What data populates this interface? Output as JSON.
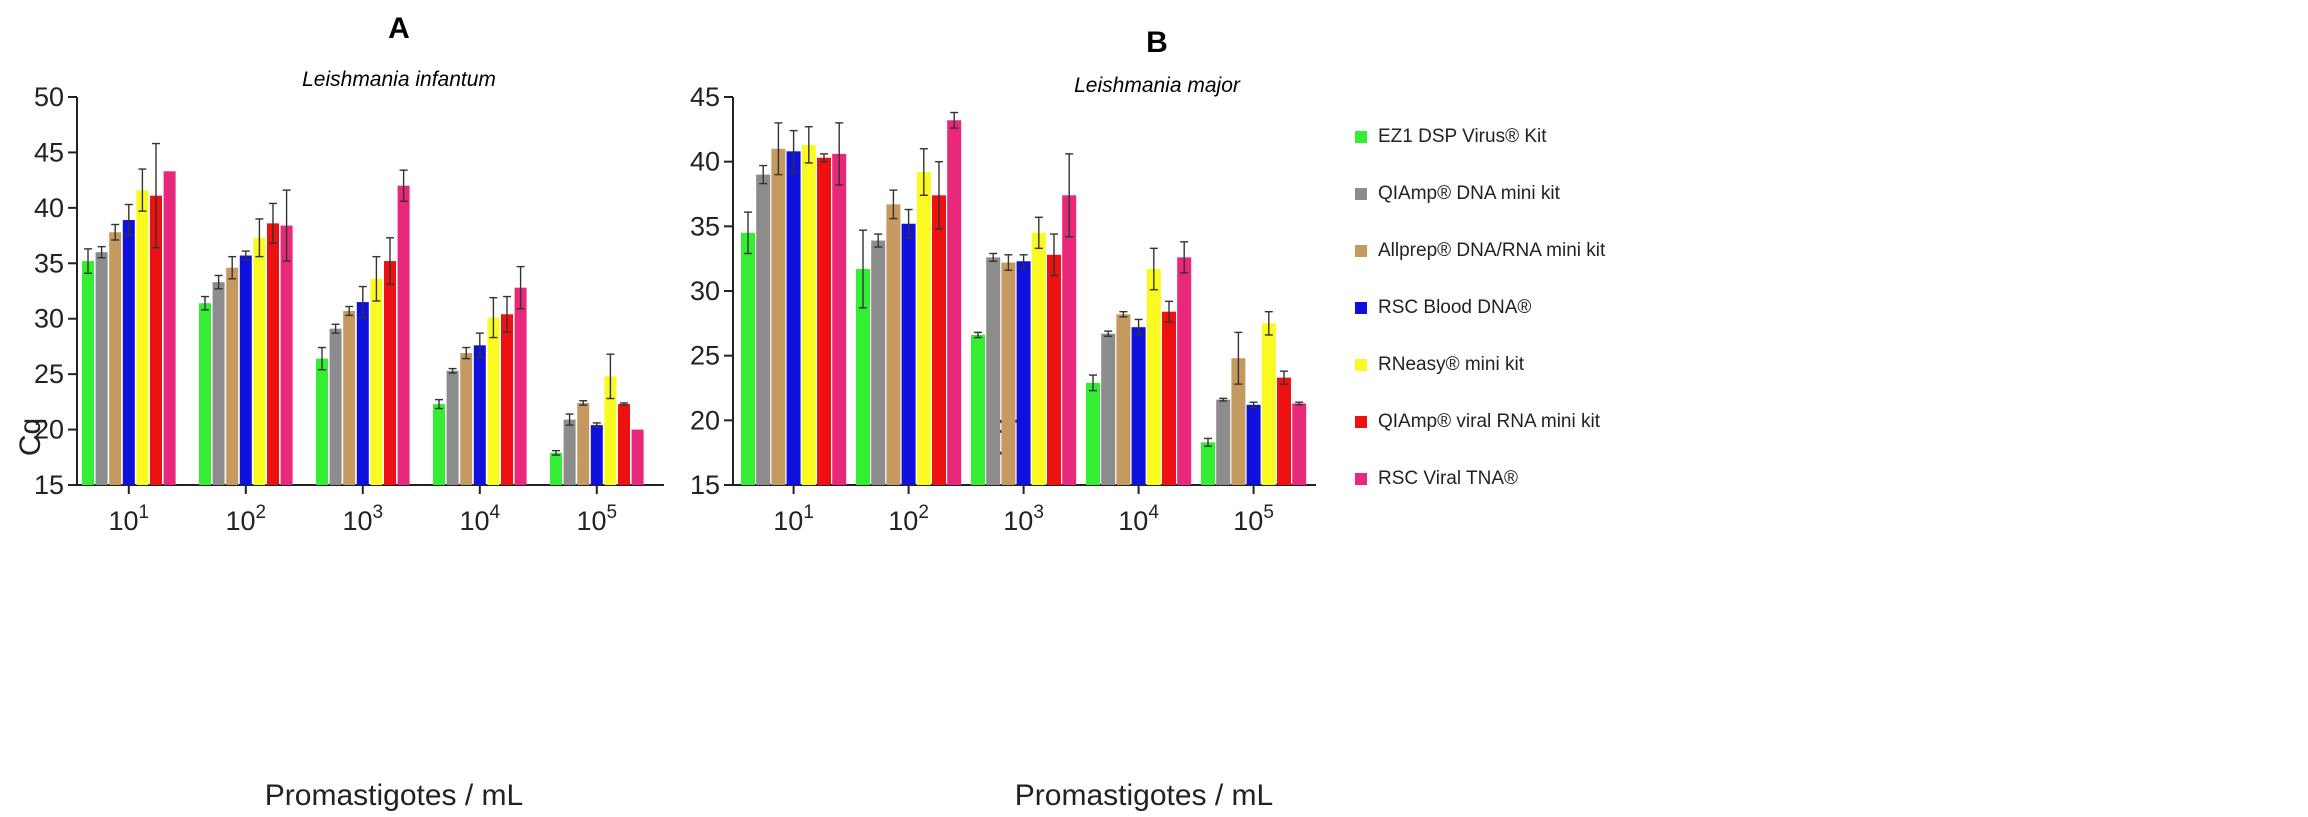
{
  "chart_data": [
    {
      "type": "bar",
      "panel": "A",
      "subtitle": "Leishmania infantum",
      "xlabel": "Promastigotes / mL",
      "ylabel": "Cq",
      "ylim": [
        15,
        50
      ],
      "yticks": [
        15,
        20,
        25,
        30,
        35,
        40,
        45,
        50
      ],
      "categories": [
        {
          "base": "10",
          "exp": "1"
        },
        {
          "base": "10",
          "exp": "2"
        },
        {
          "base": "10",
          "exp": "3"
        },
        {
          "base": "10",
          "exp": "4"
        },
        {
          "base": "10",
          "exp": "5"
        }
      ],
      "series": [
        {
          "name": "EZ1 DSP Virus® Kit",
          "color": "#33ee33",
          "values": [
            35.2,
            31.4,
            26.4,
            22.3,
            17.9
          ],
          "err": [
            1.1,
            0.6,
            1.0,
            0.4,
            0.2
          ]
        },
        {
          "name": "QIAmp® DNA mini kit",
          "color": "#8c8c8c",
          "values": [
            36.0,
            33.3,
            29.1,
            25.3,
            20.9
          ],
          "err": [
            0.5,
            0.6,
            0.4,
            0.2,
            0.5
          ]
        },
        {
          "name": "Allprep® DNA/RNA mini kit",
          "color": "#c49a60",
          "values": [
            37.8,
            34.6,
            30.7,
            26.9,
            22.4
          ],
          "err": [
            0.7,
            1.0,
            0.4,
            0.5,
            0.2
          ]
        },
        {
          "name": "RSC Blood DNA®",
          "color": "#1010dd",
          "values": [
            38.9,
            35.7,
            31.5,
            27.6,
            20.4
          ],
          "err": [
            1.4,
            0.4,
            1.4,
            1.1,
            0.2
          ]
        },
        {
          "name": "RNeasy® mini kit",
          "color": "#fafa20",
          "values": [
            41.6,
            37.3,
            33.6,
            30.1,
            24.8
          ],
          "err": [
            1.9,
            1.7,
            2.0,
            1.8,
            2.0
          ]
        },
        {
          "name": "QIAmp® viral RNA mini kit",
          "color": "#ee1111",
          "values": [
            41.1,
            38.6,
            35.2,
            30.4,
            22.3
          ],
          "err": [
            4.7,
            1.8,
            2.1,
            1.6,
            0.1
          ]
        },
        {
          "name": "RSC Viral TNA®",
          "color": "#e8287a",
          "values": [
            43.3,
            38.4,
            42.0,
            32.8,
            20.0
          ],
          "err": [
            0.0,
            3.2,
            1.4,
            1.9,
            0.0
          ]
        }
      ]
    },
    {
      "type": "bar",
      "panel": "B",
      "subtitle": "Leishmania major",
      "xlabel": "Promastigotes / mL",
      "ylabel": "Cq",
      "ylim": [
        15,
        45
      ],
      "yticks": [
        15,
        20,
        25,
        30,
        35,
        40,
        45
      ],
      "categories": [
        {
          "base": "10",
          "exp": "1"
        },
        {
          "base": "10",
          "exp": "2"
        },
        {
          "base": "10",
          "exp": "3"
        },
        {
          "base": "10",
          "exp": "4"
        },
        {
          "base": "10",
          "exp": "5"
        }
      ],
      "series": [
        {
          "name": "EZ1 DSP Virus® Kit",
          "color": "#33ee33",
          "values": [
            34.5,
            31.7,
            26.6,
            22.9,
            18.3
          ],
          "err": [
            1.6,
            3.0,
            0.2,
            0.6,
            0.3
          ]
        },
        {
          "name": "QIAmp® DNA mini kit",
          "color": "#8c8c8c",
          "values": [
            39.0,
            33.9,
            32.6,
            26.7,
            21.6
          ],
          "err": [
            0.7,
            0.5,
            0.3,
            0.2,
            0.1
          ]
        },
        {
          "name": "Allprep® DNA/RNA mini kit",
          "color": "#c49a60",
          "values": [
            41.0,
            36.7,
            32.2,
            28.2,
            24.8
          ],
          "err": [
            2.0,
            1.1,
            0.6,
            0.2,
            2.0
          ]
        },
        {
          "name": "RSC Blood DNA®",
          "color": "#1010dd",
          "values": [
            40.8,
            35.2,
            32.3,
            27.2,
            21.2
          ],
          "err": [
            1.6,
            1.1,
            0.5,
            0.6,
            0.2
          ]
        },
        {
          "name": "RNeasy® mini kit",
          "color": "#fafa20",
          "values": [
            41.3,
            39.2,
            34.5,
            31.7,
            27.5
          ],
          "err": [
            1.4,
            1.8,
            1.2,
            1.6,
            0.9
          ]
        },
        {
          "name": "QIAmp® viral RNA mini kit",
          "color": "#ee1111",
          "values": [
            40.3,
            37.4,
            32.8,
            28.4,
            23.3
          ],
          "err": [
            0.3,
            2.6,
            1.6,
            0.8,
            0.5
          ]
        },
        {
          "name": "RSC Viral TNA®",
          "color": "#e8287a",
          "values": [
            40.6,
            43.2,
            37.4,
            32.6,
            21.3
          ],
          "err": [
            2.4,
            0.6,
            3.2,
            1.2,
            0.1
          ]
        }
      ]
    }
  ],
  "legend": {
    "placement": "right",
    "items": [
      {
        "label": "EZ1 DSP Virus® Kit",
        "color": "#33ee33"
      },
      {
        "label": "QIAmp® DNA mini kit",
        "color": "#8c8c8c"
      },
      {
        "label": "Allprep® DNA/RNA mini kit",
        "color": "#c49a60"
      },
      {
        "label": "RSC Blood DNA®",
        "color": "#1010dd"
      },
      {
        "label": "RNeasy® mini kit",
        "color": "#fafa20"
      },
      {
        "label": "QIAmp® viral RNA mini kit",
        "color": "#ee1111"
      },
      {
        "label": "RSC Viral TNA®",
        "color": "#e8287a"
      }
    ]
  }
}
